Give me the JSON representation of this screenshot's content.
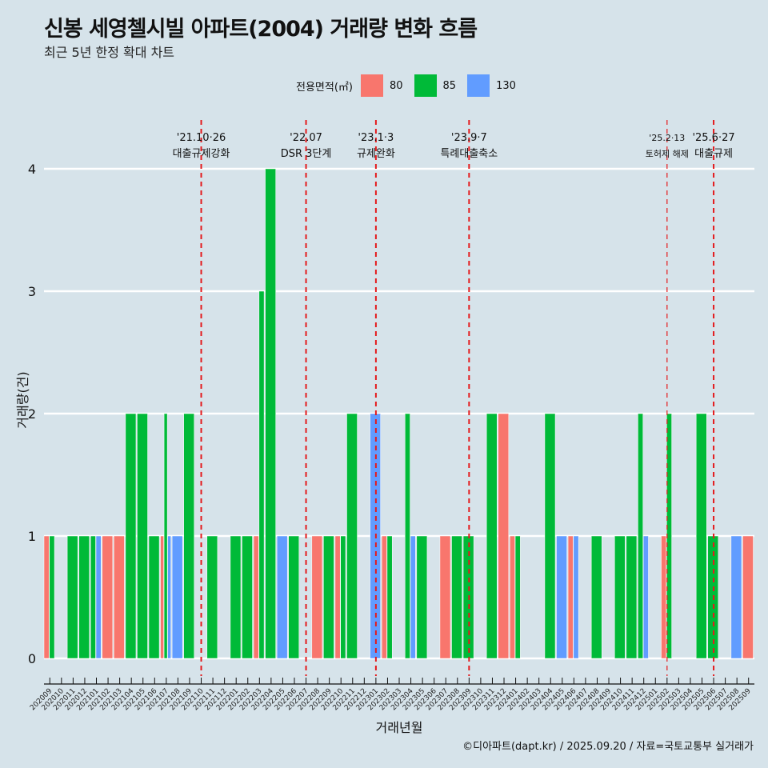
{
  "header": {
    "title": "신봉 세영첼시빌 아파트(2004) 거래량 변화 흐름",
    "subtitle": "최근 5년 한정 확대 차트"
  },
  "legend": {
    "title": "전용면적(㎡)",
    "items": [
      {
        "label": "80",
        "color": "#f8766d"
      },
      {
        "label": "85",
        "color": "#00ba38"
      },
      {
        "label": "130",
        "color": "#619cff"
      }
    ]
  },
  "caption": "©디아파트(dapt.kr) / 2025.09.20 / 자료=국토교통부 실거래가",
  "chart_data": {
    "type": "bar",
    "xlabel": "거래년월",
    "ylabel": "거래량(건)",
    "ylim": [
      0,
      4
    ],
    "yticks": [
      0,
      1,
      2,
      3,
      4
    ],
    "grid": true,
    "legend_position": "top",
    "categories": [
      "202009",
      "202010",
      "202011",
      "202012",
      "202101",
      "202102",
      "202103",
      "202104",
      "202105",
      "202106",
      "202107",
      "202108",
      "202109",
      "202110",
      "202111",
      "202112",
      "202201",
      "202202",
      "202203",
      "202204",
      "202205",
      "202206",
      "202207",
      "202208",
      "202209",
      "202210",
      "202211",
      "202212",
      "202301",
      "202302",
      "202303",
      "202304",
      "202305",
      "202306",
      "202307",
      "202308",
      "202309",
      "202310",
      "202311",
      "202312",
      "202401",
      "202402",
      "202403",
      "202404",
      "202405",
      "202406",
      "202407",
      "202408",
      "202409",
      "202410",
      "202411",
      "202412",
      "202501",
      "202502",
      "202503",
      "202504",
      "202505",
      "202506",
      "202507",
      "202508",
      "202509"
    ],
    "series": [
      {
        "name": "80",
        "color": "#f8766d",
        "values": [
          1,
          0,
          0,
          0,
          0,
          1,
          1,
          0,
          0,
          0,
          1,
          0,
          0,
          0,
          0,
          0,
          0,
          0,
          1,
          0,
          0,
          0,
          0,
          1,
          0,
          1,
          0,
          0,
          0,
          1,
          0,
          0,
          0,
          0,
          1,
          0,
          0,
          0,
          0,
          2,
          1,
          0,
          0,
          0,
          0,
          1,
          0,
          0,
          0,
          0,
          0,
          0,
          0,
          1,
          0,
          0,
          0,
          0,
          0,
          0,
          1
        ]
      },
      {
        "name": "85",
        "color": "#00ba38",
        "values": [
          1,
          0,
          1,
          1,
          1,
          0,
          0,
          2,
          2,
          1,
          2,
          0,
          2,
          0,
          1,
          0,
          1,
          1,
          3,
          4,
          0,
          1,
          0,
          0,
          1,
          1,
          2,
          0,
          0,
          1,
          0,
          2,
          1,
          0,
          0,
          1,
          1,
          0,
          2,
          0,
          1,
          0,
          0,
          2,
          0,
          0,
          0,
          1,
          0,
          1,
          1,
          2,
          0,
          2,
          0,
          0,
          2,
          1,
          0,
          0,
          0
        ]
      },
      {
        "name": "130",
        "color": "#619cff",
        "values": [
          0,
          0,
          0,
          0,
          1,
          0,
          0,
          0,
          0,
          0,
          1,
          1,
          0,
          0,
          0,
          0,
          0,
          0,
          0,
          0,
          1,
          0,
          0,
          0,
          0,
          0,
          0,
          0,
          2,
          0,
          0,
          1,
          0,
          0,
          0,
          0,
          0,
          0,
          0,
          0,
          0,
          0,
          0,
          0,
          1,
          1,
          0,
          0,
          0,
          0,
          0,
          1,
          0,
          0,
          0,
          0,
          0,
          0,
          0,
          1,
          0
        ]
      }
    ],
    "annotations": [
      {
        "date": "'21.10·26",
        "label": "대출규제강화",
        "x": "202110",
        "style": "thick"
      },
      {
        "date": "'22.07",
        "label": "DSR 3단계",
        "x": "202207",
        "style": "thick"
      },
      {
        "date": "'23.1·3",
        "label": "규제완화",
        "x": "202301",
        "style": "thick"
      },
      {
        "date": "'23.9·7",
        "label": "특례대출축소",
        "x": "202309",
        "style": "thick"
      },
      {
        "date": "'25.2·13",
        "label": "토허제 해제",
        "x": "202502",
        "style": "thin"
      },
      {
        "date": "'25.6·27",
        "label": "대출규제",
        "x": "202506",
        "style": "thick"
      }
    ]
  }
}
